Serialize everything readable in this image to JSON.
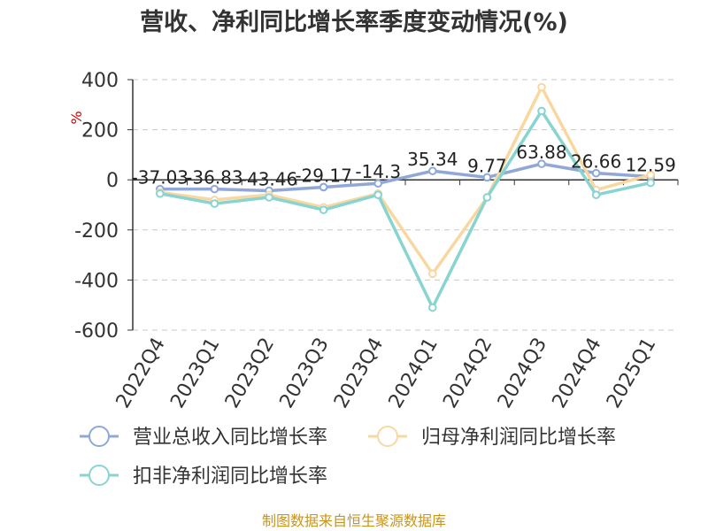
{
  "chart_data": {
    "type": "line",
    "title": "营收、净利同比增长率季度变动情况(%)",
    "y_unit": "%",
    "categories": [
      "2022Q4",
      "2023Q1",
      "2023Q2",
      "2023Q3",
      "2023Q4",
      "2024Q1",
      "2024Q2",
      "2024Q3",
      "2024Q4",
      "2025Q1"
    ],
    "ylim": [
      -600,
      400
    ],
    "y_ticks": [
      "400",
      "200",
      "0",
      "-200",
      "-400",
      "-600"
    ],
    "grid": true,
    "legend_position": "bottom",
    "series": [
      {
        "name": "营业总收入同比增长率",
        "color": "#8fa8d8",
        "values": [
          -37.03,
          -36.83,
          -43.46,
          -29.17,
          -14.3,
          35.34,
          9.77,
          63.88,
          26.66,
          12.59
        ],
        "labels": [
          "-37.03",
          "-36.83",
          "-43.46",
          "-29.17",
          "-14.3",
          "35.34",
          "9.77",
          "63.88",
          "26.66",
          "12.59"
        ]
      },
      {
        "name": "归母净利润同比增长率",
        "color": "#f8d8a0",
        "values": [
          -50,
          -80,
          -60,
          -110,
          -55,
          -375,
          -70,
          370,
          -40,
          20
        ]
      },
      {
        "name": "扣非净利润同比增长率",
        "color": "#88d4d0",
        "values": [
          -55,
          -95,
          -70,
          -120,
          -60,
          -510,
          -70,
          275,
          -60,
          -12
        ]
      }
    ],
    "source": "制图数据来自恒生聚源数据库"
  }
}
